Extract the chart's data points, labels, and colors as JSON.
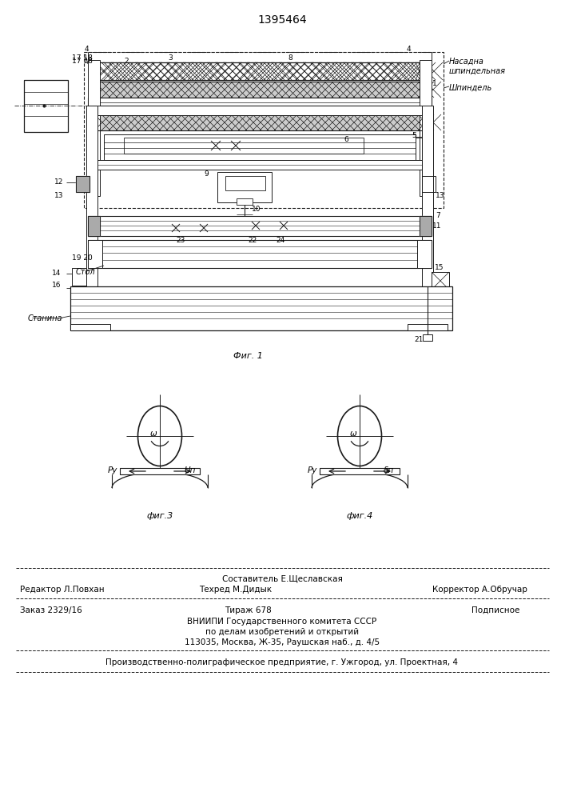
{
  "patent_number": "1395464",
  "line_color": "#1a1a1a",
  "fig1_caption": "Фиг. 1",
  "fig3_caption": "фиг.3",
  "fig4_caption": "фиг.4",
  "label_nasadka": "Насадна",
  "label_shpindelnaya": "шпиндельная",
  "label_shpindel": "Шпиндель",
  "label_stanina": "Станина",
  "label_stol": "Стол",
  "footer_line1": "Составитель Е.Щеславская",
  "footer_editor": "Редактор Л.Повхан",
  "footer_tehred": "Техред М.Дидык",
  "footer_korrektor": "Корректор А.Обручар",
  "footer_zakaz": "Заказ 2329/16",
  "footer_tirazh": "Тираж 678",
  "footer_podpisnoe": "Подписное",
  "footer_vniiipi": "ВНИИПИ Государственного комитета СССР",
  "footer_po_delam": "по делам изобретений и открытий",
  "footer_address": "113035, Москва, Ж-35, Раушская наб., д. 4/5",
  "footer_proizv": "Производственно-полиграфическое предприятие, г. Ужгород, ул. Проектная, 4"
}
